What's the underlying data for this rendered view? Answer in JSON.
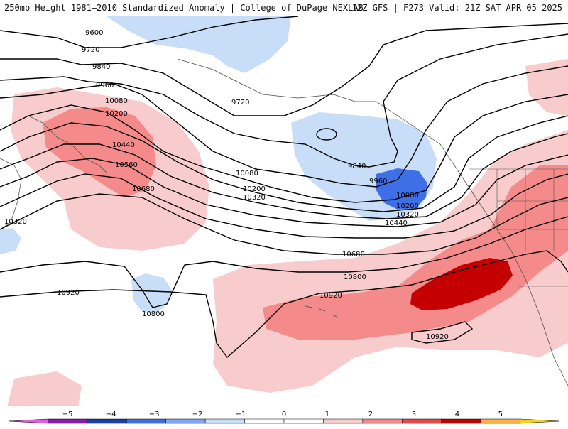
{
  "header": {
    "title_left": "250mb Height 1981–2010 Standardized Anomaly | College of DuPage NEXLAB",
    "title_right": "12Z GFS | F273 Valid: 21Z SAT APR 05 2025"
  },
  "contours": {
    "c9600": "9600",
    "c9720a": "9720",
    "c9720b": "9720",
    "c9840a": "9840",
    "c9840b": "9840",
    "c9960a": "9960",
    "c9960b": "9960",
    "c10080a": "10080",
    "c10080b": "10080",
    "c10080c": "10080",
    "c10200a": "10200",
    "c10200b": "10200",
    "c10200c": "10200",
    "c10320a": "10320",
    "c10320b": "10320",
    "c10320c": "10320",
    "c10440a": "10440",
    "c10440b": "10440",
    "c10560": "10560",
    "c10680a": "10680",
    "c10680b": "10680",
    "c10800a": "10800",
    "c10800b": "10800",
    "c10920a": "10920",
    "c10920b": "10920",
    "c10920c": "10920"
  },
  "colorbar": {
    "ticks": [
      "−5",
      "−4",
      "−3",
      "−2",
      "−1",
      "0",
      "1",
      "2",
      "3",
      "4",
      "5"
    ],
    "colors": [
      "#e05ee0",
      "#8a1ab0",
      "#1b3fa8",
      "#3f6fe6",
      "#7fa6f2",
      "#c8def8",
      "#ffffff",
      "#ffffff",
      "#f8cccc",
      "#f48a8a",
      "#e84848",
      "#c40000",
      "#fbb040",
      "#f5d020"
    ]
  }
}
